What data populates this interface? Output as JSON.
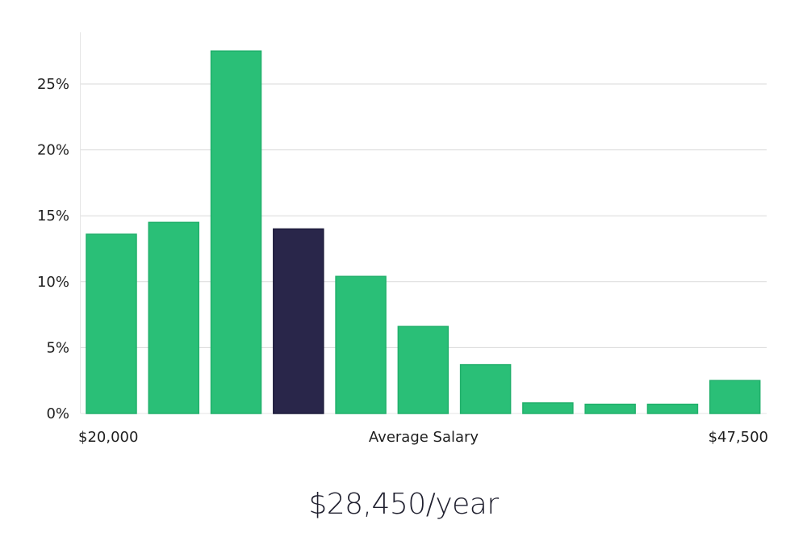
{
  "chart_data": {
    "type": "bar",
    "values": [
      13.6,
      14.5,
      27.5,
      14.0,
      10.4,
      6.6,
      3.7,
      0.8,
      0.7,
      0.7,
      2.5
    ],
    "highlight_index": 3,
    "colors": {
      "bar": "#2abf77",
      "highlight": "#29264a",
      "grid": "#dadada",
      "axis": "#e6e6e6",
      "text": "#1f1f1f"
    },
    "y_ticks": [
      "0%",
      "5%",
      "10%",
      "15%",
      "20%",
      "25%"
    ],
    "ylim": [
      0,
      29
    ],
    "x_min_label": "$20,000",
    "x_max_label": "$47,500",
    "xlabel": "Average Salary"
  },
  "summary": {
    "value_label": "$28,450/year"
  }
}
